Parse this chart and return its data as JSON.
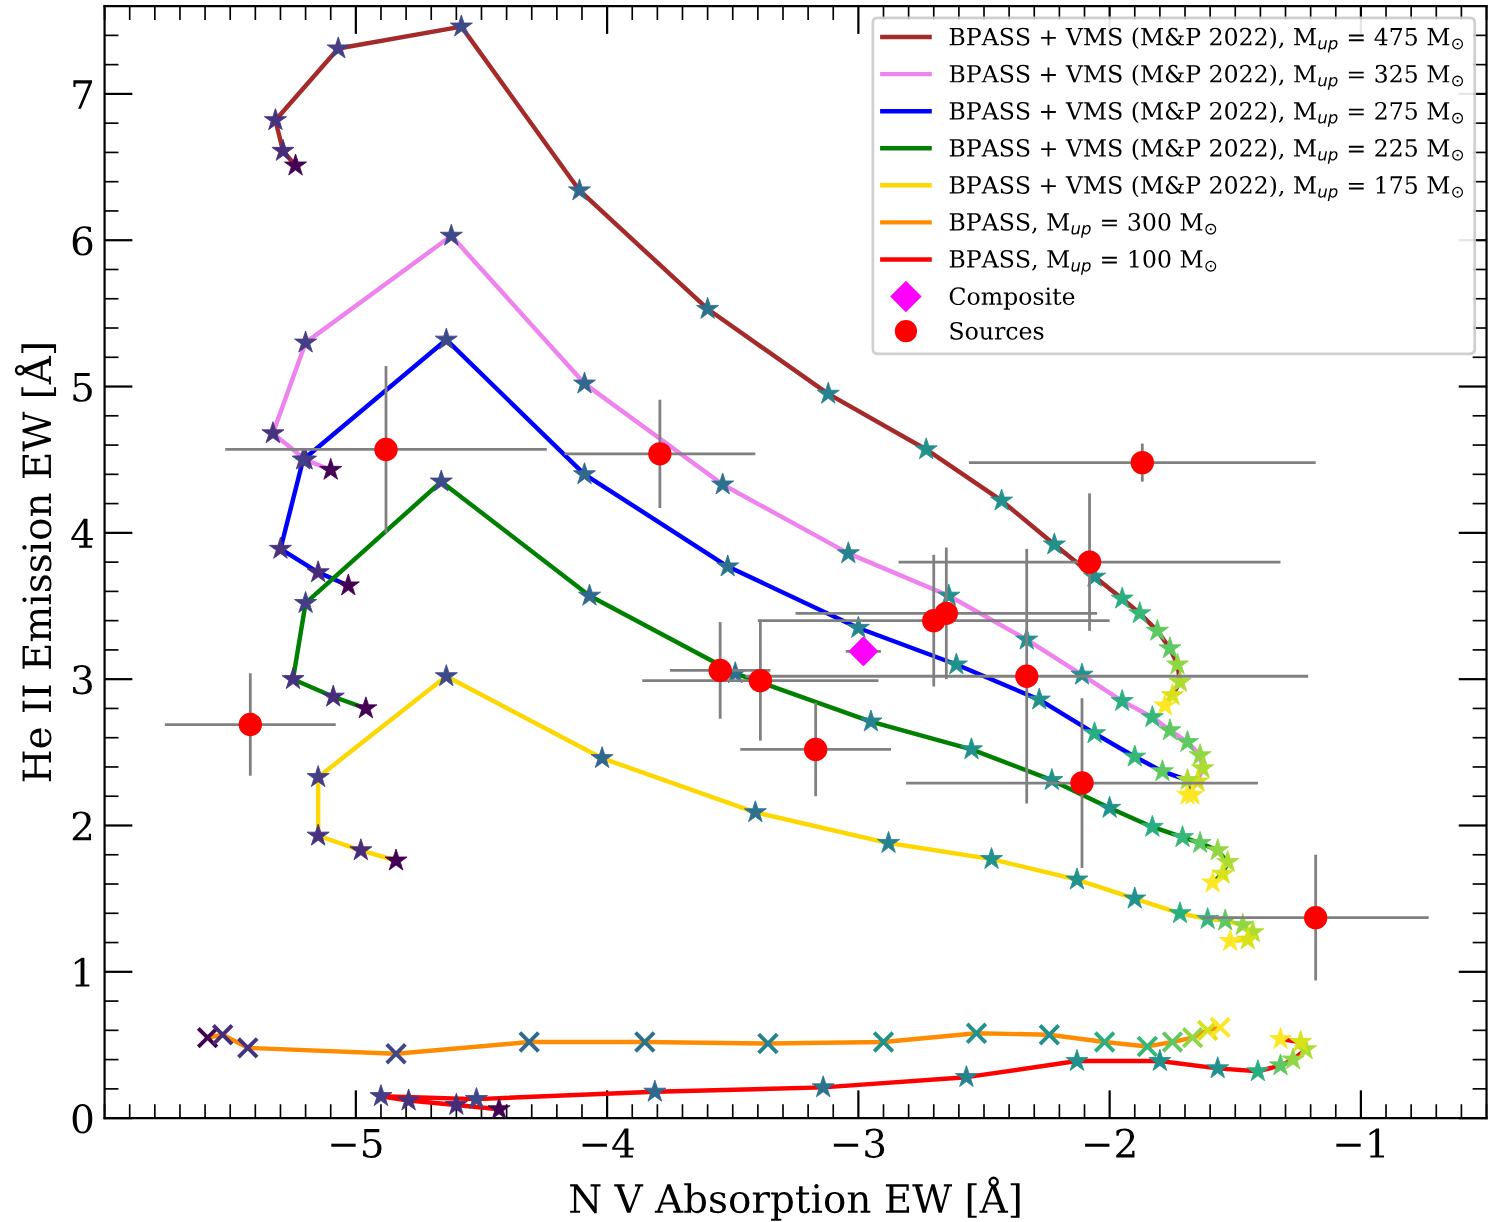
{
  "chart_data": {
    "type": "line",
    "xlabel": "N V Absorption EW [Å]",
    "ylabel": "He II Emission EW [Å]",
    "xlim": [
      -6,
      -0.5
    ],
    "ylim": [
      0,
      7.6
    ],
    "xticks": [
      {
        "value": -5,
        "label": "−5"
      },
      {
        "value": -4,
        "label": "−4"
      },
      {
        "value": -3,
        "label": "−3"
      },
      {
        "value": -2,
        "label": "−2"
      },
      {
        "value": -1,
        "label": "−1"
      }
    ],
    "yticks": [
      0,
      1,
      2,
      3,
      4,
      5,
      6,
      7
    ],
    "grid": false,
    "legend": "top right",
    "series": [
      {
        "name": "BPASS + VMS (M&P 2022), M$_{up}$ = 475 M$_{⊙}$",
        "marker": "star",
        "color": "#a52a2a",
        "x": [
          -5.24,
          -5.29,
          -5.32,
          -5.07,
          -4.58,
          -4.11,
          -3.6,
          -3.12,
          -2.73,
          -2.43,
          -2.22,
          -2.06,
          -1.95,
          -1.88,
          -1.81,
          -1.76,
          -1.73,
          -1.72,
          -1.75,
          -1.78
        ],
        "values": [
          6.51,
          6.61,
          6.82,
          7.31,
          7.46,
          6.34,
          5.53,
          4.95,
          4.57,
          4.22,
          3.92,
          3.7,
          3.55,
          3.45,
          3.33,
          3.21,
          3.1,
          2.98,
          2.89,
          2.82
        ],
        "colors": [
          "#440154",
          "#472c7a",
          "#46327e",
          "#433e85",
          "#3e4989",
          "#31688e",
          "#2c728e",
          "#26828e",
          "#21918c",
          "#21918c",
          "#21918c",
          "#21918c",
          "#28ae80",
          "#35b779",
          "#5ec962",
          "#5ec962",
          "#90d743",
          "#addc30",
          "#d8e219",
          "#fde725"
        ]
      },
      {
        "name": "BPASS + VMS (M&P 2022), M$_{up}$ = 325 M$_{⊙}$",
        "marker": "star",
        "color": "#ee82ee",
        "x": [
          -5.1,
          -5.2,
          -5.33,
          -5.2,
          -4.62,
          -4.09,
          -3.54,
          -3.04,
          -2.64,
          -2.33,
          -2.11,
          -1.95,
          -1.83,
          -1.76,
          -1.69,
          -1.64,
          -1.63,
          -1.65,
          -1.69
        ],
        "values": [
          4.43,
          4.5,
          4.68,
          5.3,
          6.03,
          5.02,
          4.33,
          3.86,
          3.57,
          3.27,
          3.03,
          2.85,
          2.74,
          2.65,
          2.57,
          2.48,
          2.39,
          2.3,
          2.21
        ],
        "colors": [
          "#440154",
          "#472c7a",
          "#46327e",
          "#433e85",
          "#3e4989",
          "#31688e",
          "#2c728e",
          "#26828e",
          "#21918c",
          "#21918c",
          "#21918c",
          "#28ae80",
          "#35b779",
          "#5ec962",
          "#5ec962",
          "#90d743",
          "#addc30",
          "#d8e219",
          "#fde725"
        ]
      },
      {
        "name": "BPASS + VMS (M&P 2022), M$_{up}$ = 275 M$_{⊙}$",
        "marker": "star",
        "color": "#0000ff",
        "x": [
          -5.03,
          -5.15,
          -5.3,
          -5.21,
          -4.64,
          -4.09,
          -3.52,
          -3.0,
          -2.61,
          -2.28,
          -2.06,
          -1.9,
          -1.79,
          -1.69,
          -1.67
        ],
        "values": [
          3.64,
          3.73,
          3.89,
          4.5,
          5.32,
          4.4,
          3.77,
          3.35,
          3.1,
          2.86,
          2.63,
          2.47,
          2.37,
          2.31,
          2.21
        ],
        "colors": [
          "#440154",
          "#472c7a",
          "#46327e",
          "#433e85",
          "#3e4989",
          "#31688e",
          "#2c728e",
          "#26828e",
          "#21918c",
          "#21918c",
          "#28ae80",
          "#35b779",
          "#5ec962",
          "#addc30",
          "#fde725"
        ]
      },
      {
        "name": "BPASS + VMS (M&P 2022), M$_{up}$ = 225 M$_{⊙}$",
        "marker": "star",
        "color": "#008000",
        "x": [
          -4.96,
          -5.09,
          -5.25,
          -5.2,
          -4.66,
          -4.07,
          -3.49,
          -2.95,
          -2.55,
          -2.23,
          -2.0,
          -1.83,
          -1.71,
          -1.64,
          -1.57,
          -1.53,
          -1.55,
          -1.59
        ],
        "values": [
          2.8,
          2.88,
          3.0,
          3.52,
          4.35,
          3.57,
          3.04,
          2.71,
          2.52,
          2.31,
          2.12,
          1.99,
          1.92,
          1.88,
          1.83,
          1.75,
          1.67,
          1.61
        ],
        "colors": [
          "#440154",
          "#472c7a",
          "#46327e",
          "#433e85",
          "#3e4989",
          "#31688e",
          "#2c728e",
          "#26828e",
          "#21918c",
          "#21918c",
          "#21918c",
          "#28ae80",
          "#35b779",
          "#5ec962",
          "#90d743",
          "#addc30",
          "#d8e219",
          "#fde725"
        ]
      },
      {
        "name": "BPASS + VMS (M&P 2022), M$_{up}$ = 175 M$_{⊙}$",
        "marker": "star",
        "color": "#ffd700",
        "x": [
          -4.84,
          -4.98,
          -5.15,
          -5.15,
          -4.64,
          -4.02,
          -3.41,
          -2.88,
          -2.47,
          -2.13,
          -1.9,
          -1.72,
          -1.61,
          -1.54,
          -1.47,
          -1.43,
          -1.45,
          -1.52
        ],
        "values": [
          1.76,
          1.83,
          1.93,
          2.33,
          3.02,
          2.46,
          2.09,
          1.88,
          1.77,
          1.63,
          1.5,
          1.4,
          1.36,
          1.35,
          1.32,
          1.27,
          1.22,
          1.21
        ],
        "colors": [
          "#440154",
          "#472c7a",
          "#46327e",
          "#433e85",
          "#3e4989",
          "#31688e",
          "#2c728e",
          "#26828e",
          "#21918c",
          "#21918c",
          "#21918c",
          "#28ae80",
          "#35b779",
          "#5ec962",
          "#90d743",
          "#addc30",
          "#d8e219",
          "#fde725"
        ]
      },
      {
        "name": "BPASS, M$_{up}$ = 300 M$_{⊙}$",
        "marker": "cross",
        "color": "#ff8c00",
        "x": [
          -5.59,
          -5.53,
          -5.43,
          -4.84,
          -4.31,
          -3.85,
          -3.36,
          -2.9,
          -2.53,
          -2.24,
          -2.02,
          -1.85,
          -1.75,
          -1.67,
          -1.61,
          -1.56
        ],
        "values": [
          0.55,
          0.57,
          0.48,
          0.44,
          0.52,
          0.52,
          0.51,
          0.52,
          0.58,
          0.57,
          0.52,
          0.49,
          0.52,
          0.55,
          0.6,
          0.62
        ],
        "colors": [
          "#440154",
          "#472c7a",
          "#46327e",
          "#3e4989",
          "#31688e",
          "#2c728e",
          "#26828e",
          "#21918c",
          "#21918c",
          "#21918c",
          "#28ae80",
          "#35b779",
          "#5ec962",
          "#90d743",
          "#d8e219",
          "#fde725"
        ]
      },
      {
        "name": "BPASS, M$_{up}$ = 100 M$_{⊙}$",
        "marker": "star",
        "color": "#ff0000",
        "x": [
          -4.43,
          -4.6,
          -4.79,
          -4.9,
          -4.52,
          -3.81,
          -3.14,
          -2.57,
          -2.13,
          -1.8,
          -1.57,
          -1.41,
          -1.32,
          -1.27,
          -1.22,
          -1.24,
          -1.32
        ],
        "values": [
          0.06,
          0.09,
          0.12,
          0.15,
          0.13,
          0.18,
          0.21,
          0.28,
          0.39,
          0.39,
          0.34,
          0.32,
          0.36,
          0.4,
          0.47,
          0.52,
          0.54
        ],
        "colors": [
          "#440154",
          "#472c7a",
          "#46327e",
          "#433e85",
          "#3e4989",
          "#31688e",
          "#2c728e",
          "#26828e",
          "#21918c",
          "#21918c",
          "#21918c",
          "#28ae80",
          "#5ec962",
          "#90d743",
          "#addc30",
          "#d8e219",
          "#fde725"
        ]
      },
      {
        "name": "Composite",
        "type": "scatter",
        "marker": "diamond",
        "color": "#ff00ff",
        "x": [
          -2.98
        ],
        "values": [
          3.19
        ],
        "xerrors": [
          0.07
        ]
      },
      {
        "name": "Sources",
        "type": "scatter",
        "marker": "circle",
        "color": "#ff0000",
        "x": [
          -5.42,
          -4.88,
          -3.79,
          -1.87,
          -2.08,
          -2.7,
          -2.65,
          -2.33,
          -3.55,
          -3.39,
          -3.17,
          -2.11,
          -1.18
        ],
        "values": [
          2.69,
          4.57,
          4.54,
          4.48,
          3.8,
          3.4,
          3.45,
          3.02,
          3.06,
          2.99,
          2.52,
          2.29,
          1.37
        ],
        "errors": [
          0.35,
          0.57,
          0.37,
          0.13,
          0.47,
          0.45,
          0.45,
          0.87,
          0.33,
          0.41,
          0.32,
          0.58,
          0.43
        ],
        "xerrors": [
          0.34,
          0.64,
          0.38,
          0.69,
          0.76,
          0.7,
          0.6,
          1.12,
          0.2,
          0.47,
          0.3,
          0.7,
          0.45
        ]
      }
    ]
  }
}
